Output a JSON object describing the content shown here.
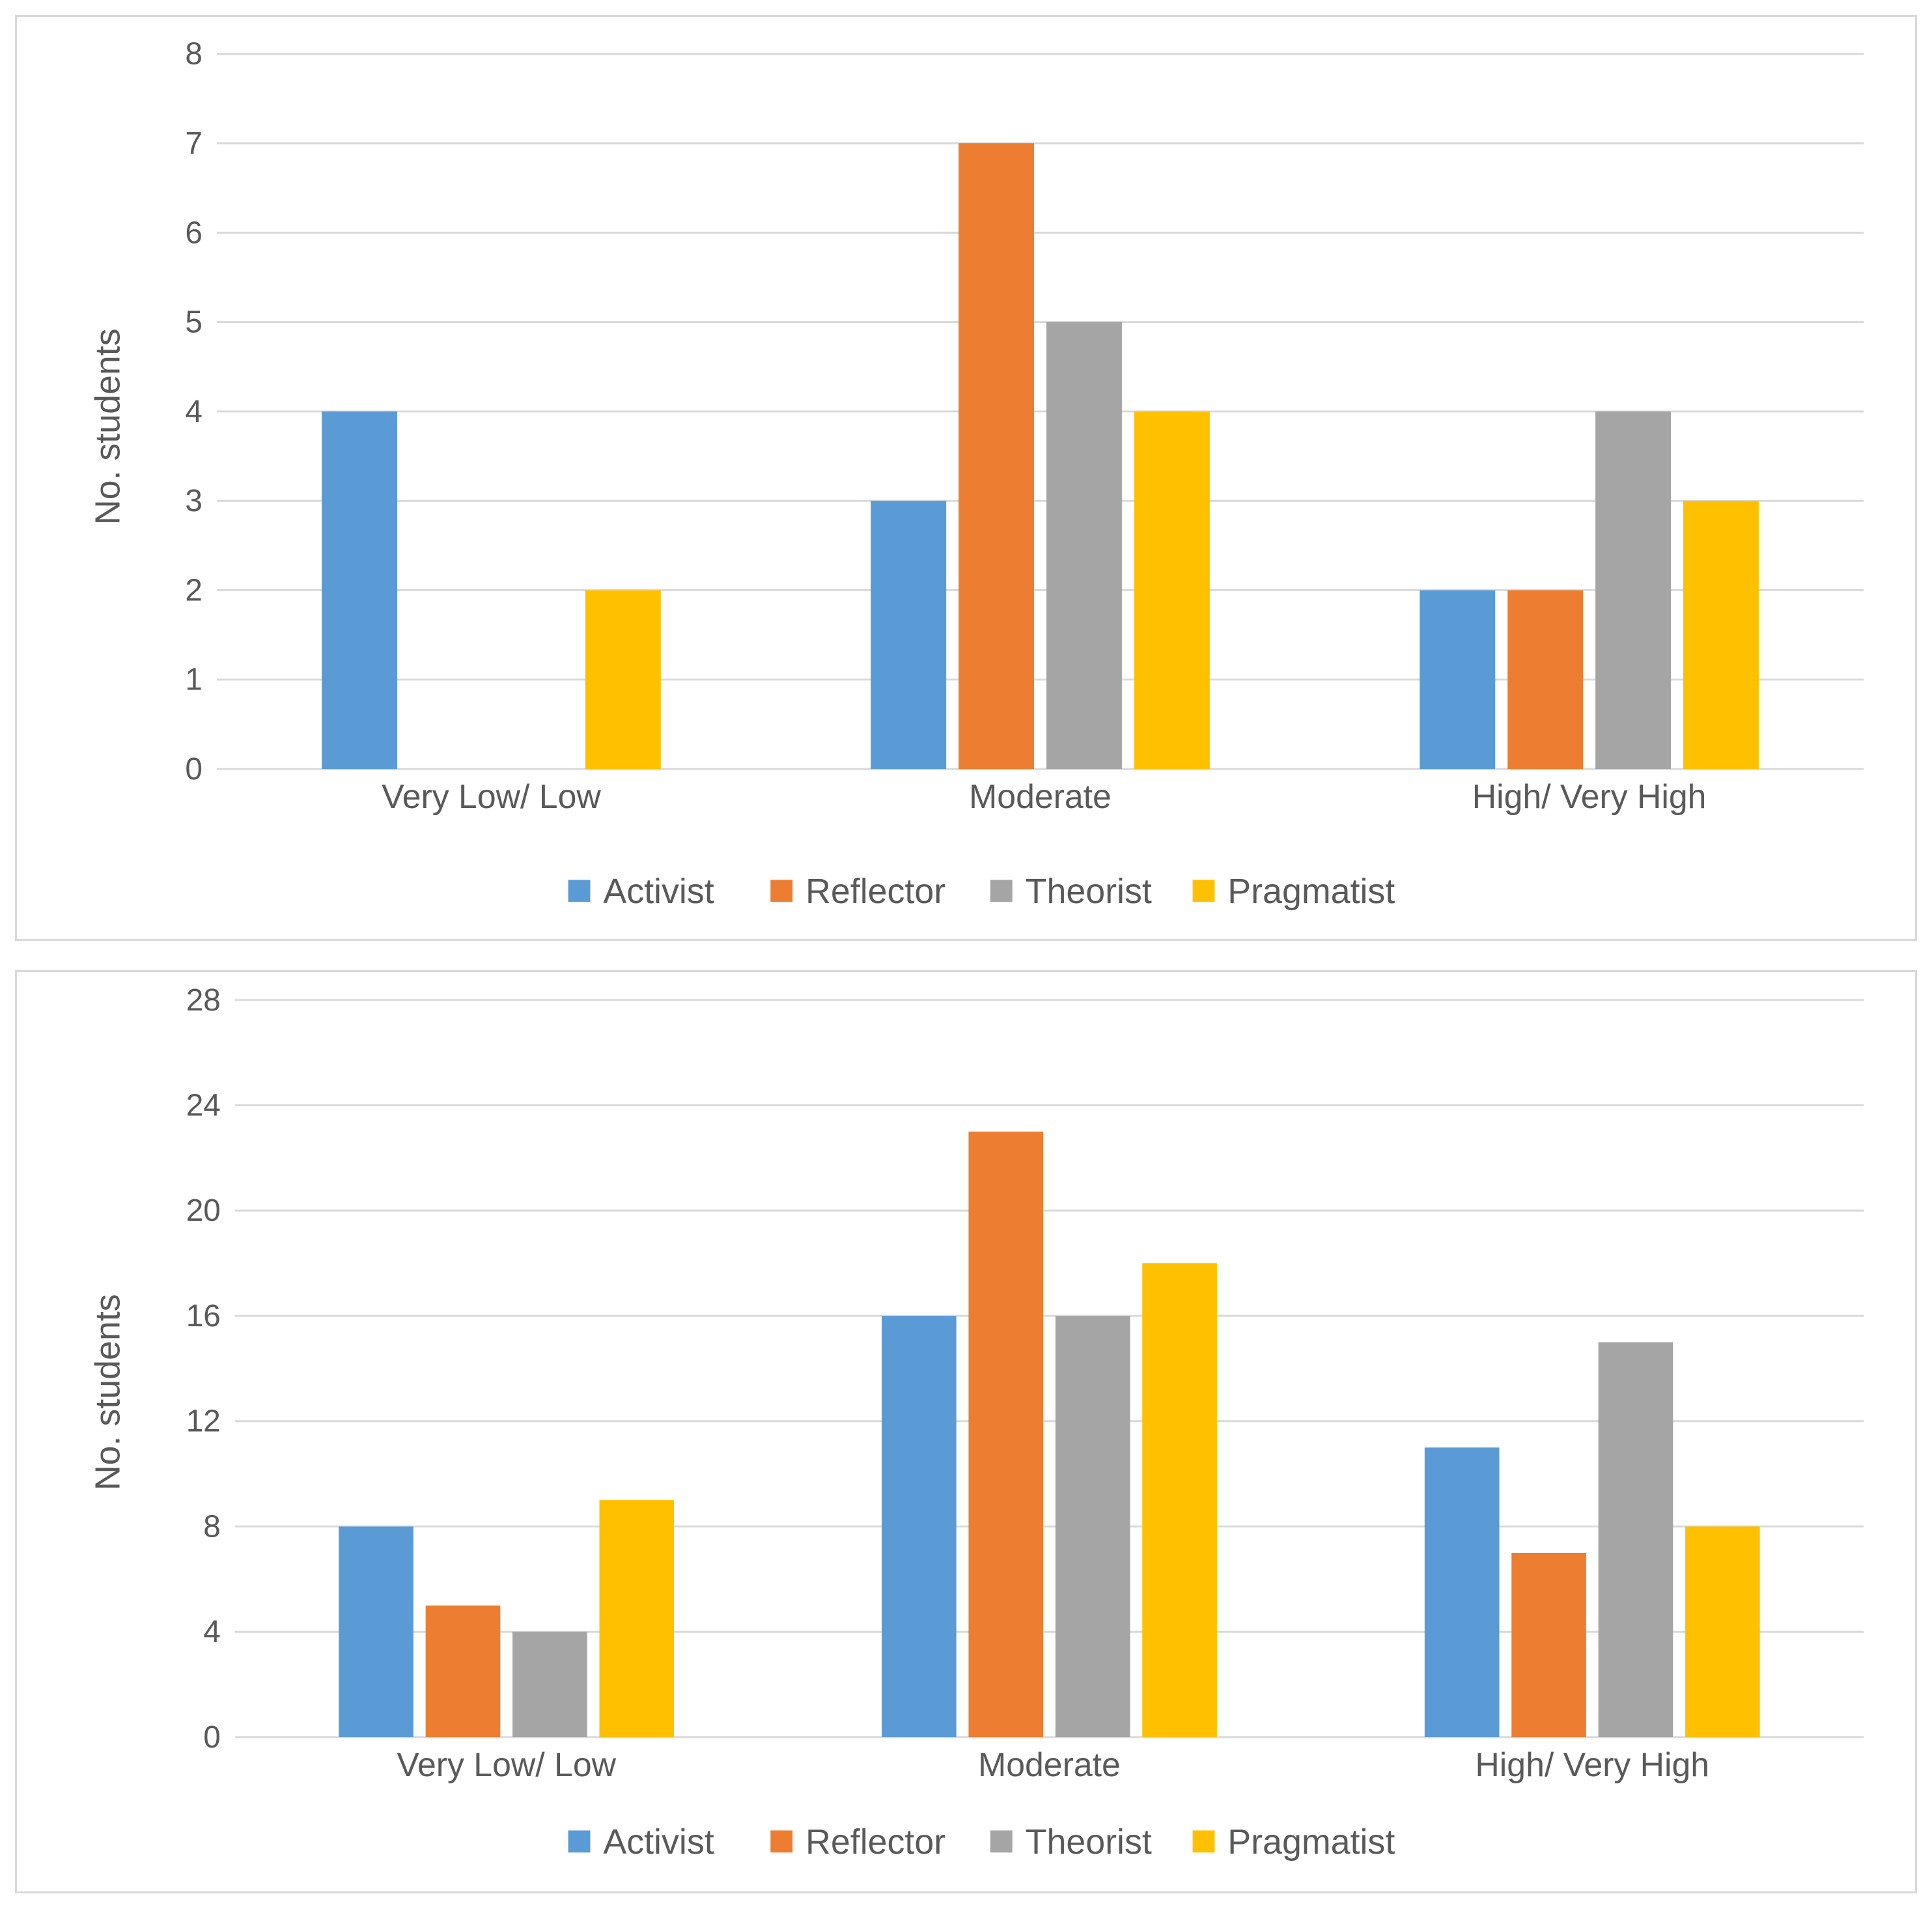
{
  "colors": {
    "Activist": "#5B9BD5",
    "Reflector": "#ED7D31",
    "Theorist": "#A5A5A5",
    "Pragmatist": "#FFC000",
    "grid": "#d9d9d9",
    "text": "#595959"
  },
  "chart_data": [
    {
      "type": "bar",
      "title": "",
      "xlabel": "",
      "ylabel": "No. students",
      "ylim": [
        0,
        8
      ],
      "yticks": [
        0,
        1,
        2,
        3,
        4,
        5,
        6,
        7,
        8
      ],
      "grid": true,
      "legend": "bottom",
      "categories": [
        "Very Low/ Low",
        "Moderate",
        "High/ Very High"
      ],
      "series": [
        {
          "name": "Activist",
          "values": [
            4,
            3,
            2
          ]
        },
        {
          "name": "Reflector",
          "values": [
            0,
            7,
            2
          ]
        },
        {
          "name": "Theorist",
          "values": [
            0,
            5,
            4
          ]
        },
        {
          "name": "Pragmatist",
          "values": [
            2,
            4,
            3
          ]
        }
      ]
    },
    {
      "type": "bar",
      "title": "",
      "xlabel": "",
      "ylabel": "No. students",
      "ylim": [
        0,
        28
      ],
      "yticks": [
        0,
        4,
        8,
        12,
        16,
        20,
        24,
        28
      ],
      "grid": true,
      "legend": "bottom",
      "categories": [
        "Very Low/ Low",
        "Moderate",
        "High/ Very High"
      ],
      "series": [
        {
          "name": "Activist",
          "values": [
            8,
            16,
            11
          ]
        },
        {
          "name": "Reflector",
          "values": [
            5,
            23,
            7
          ]
        },
        {
          "name": "Theorist",
          "values": [
            4,
            16,
            15
          ]
        },
        {
          "name": "Pragmatist",
          "values": [
            9,
            18,
            8
          ]
        }
      ]
    }
  ]
}
